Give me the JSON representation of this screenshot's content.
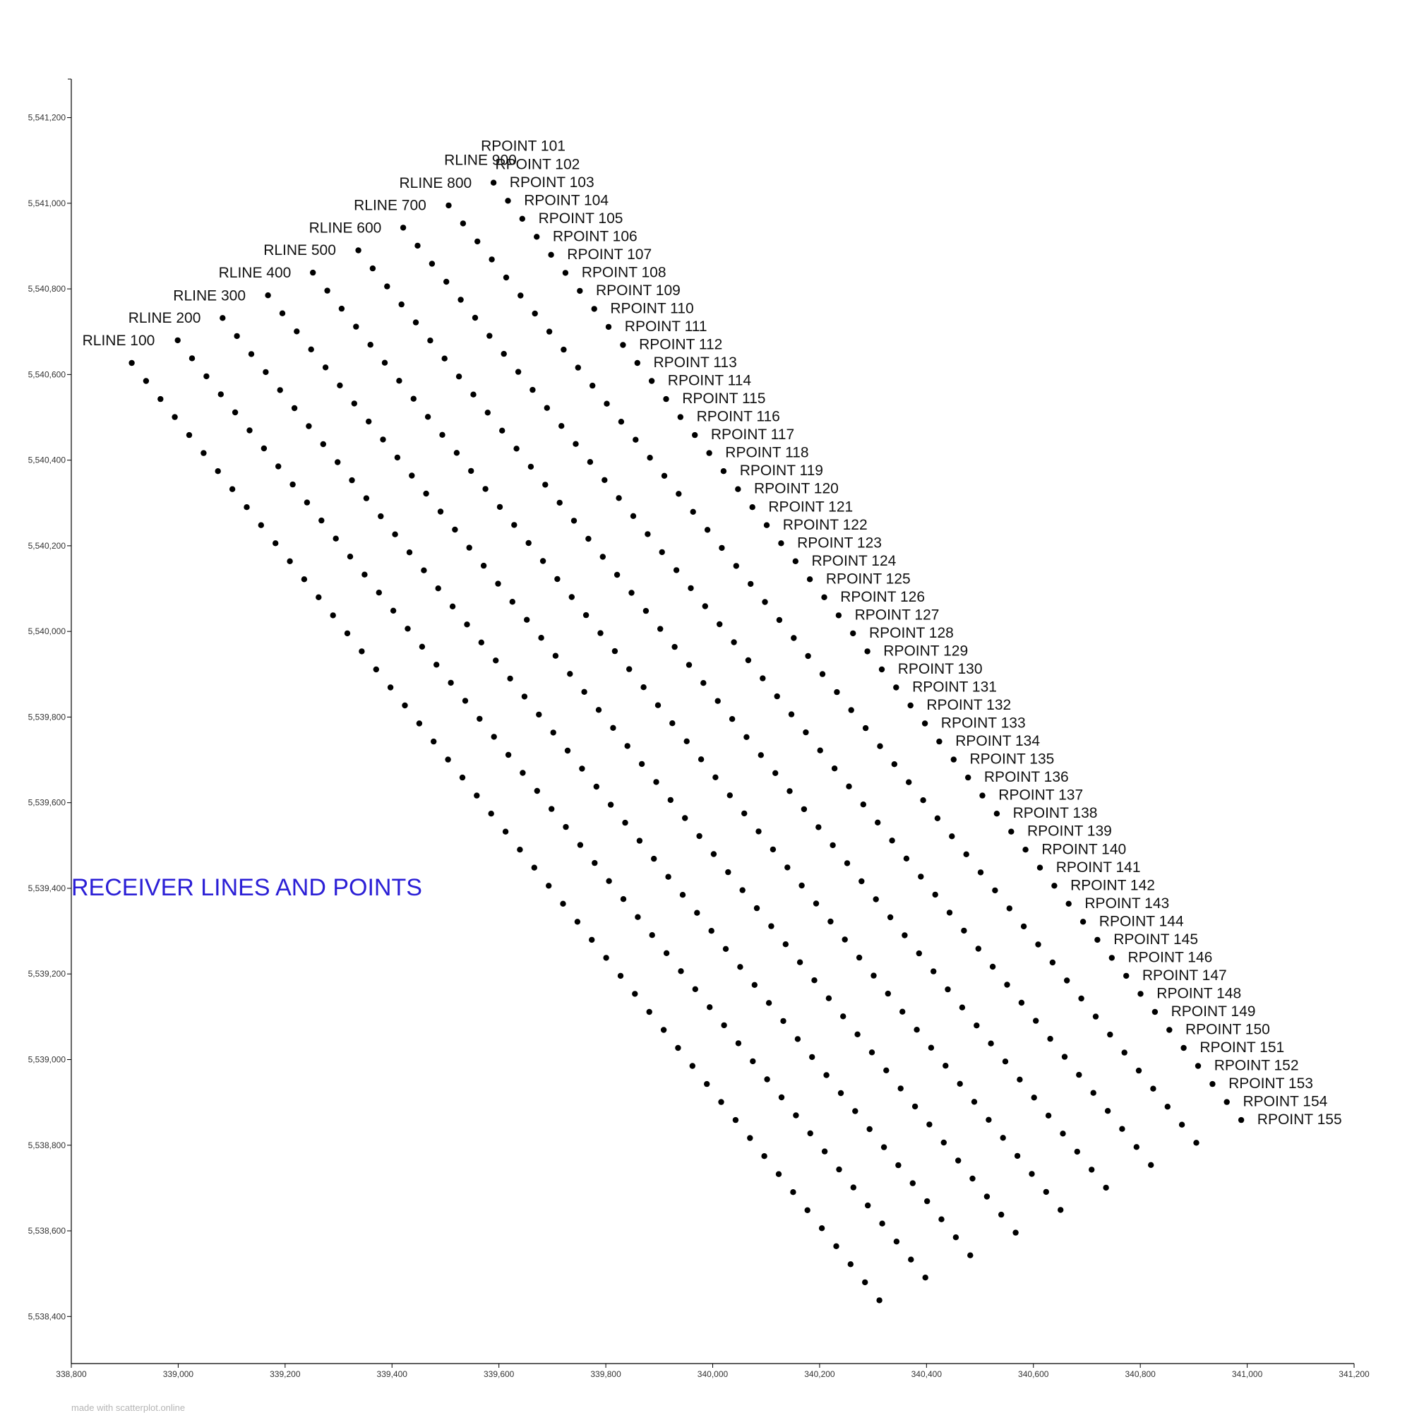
{
  "chart_data": {
    "type": "scatter",
    "title": "RECEIVER LINES AND POINTS",
    "xlabel": "",
    "ylabel": "",
    "xlim": [
      338800,
      341200
    ],
    "ylim": [
      5538290,
      5541290
    ],
    "x_ticks": [
      338800,
      339000,
      339200,
      339400,
      339600,
      339800,
      340000,
      340200,
      340400,
      340600,
      340800,
      341000,
      341200
    ],
    "y_ticks": [
      5538400,
      5538600,
      5538800,
      5539000,
      5539200,
      5539400,
      5539600,
      5539800,
      5540000,
      5540200,
      5540400,
      5540600,
      5540800,
      5541000,
      5541200
    ],
    "x_tick_labels": [
      "338,800",
      "339,000",
      "339,200",
      "339,400",
      "339,600",
      "339,800",
      "340,000",
      "340,200",
      "340,400",
      "340,600",
      "340,800",
      "341,000",
      "341,200"
    ],
    "y_tick_labels": [
      "5,538,400",
      "5,538,600",
      "5,538,800",
      "5,539,000",
      "5,539,200",
      "5,539,400",
      "5,539,600",
      "5,539,800",
      "5,540,000",
      "5,540,200",
      "5,540,400",
      "5,540,600",
      "5,540,800",
      "5,541,000",
      "5,541,200"
    ],
    "grid": false,
    "legend": "none",
    "point_color": "#000000",
    "lines": [
      {
        "name": "RLINE 100",
        "start": [
          338913,
          5540627
        ],
        "step": [
          26.9,
          -42.1
        ],
        "count": 53
      },
      {
        "name": "RLINE 200",
        "start": [
          338999,
          5540680
        ],
        "step": [
          26.9,
          -42.1
        ],
        "count": 53
      },
      {
        "name": "RLINE 300",
        "start": [
          339083,
          5540732
        ],
        "step": [
          26.9,
          -42.1
        ],
        "count": 53
      },
      {
        "name": "RLINE 400",
        "start": [
          339168,
          5540785
        ],
        "step": [
          26.9,
          -42.1
        ],
        "count": 53
      },
      {
        "name": "RLINE 500",
        "start": [
          339252,
          5540838
        ],
        "step": [
          26.9,
          -42.1
        ],
        "count": 53
      },
      {
        "name": "RLINE 600",
        "start": [
          339337,
          5540890
        ],
        "step": [
          26.9,
          -42.1
        ],
        "count": 53
      },
      {
        "name": "RLINE 700",
        "start": [
          339421,
          5540943
        ],
        "step": [
          26.9,
          -42.1
        ],
        "count": 53
      },
      {
        "name": "RLINE 800",
        "start": [
          339506,
          5540995
        ],
        "step": [
          26.9,
          -42.1
        ],
        "count": 53
      },
      {
        "name": "RLINE 900",
        "start": [
          339590,
          5541048
        ],
        "step": [
          26.9,
          -42.1
        ],
        "count": 53
      }
    ],
    "points": {
      "start": [
        339590,
        5541048
      ],
      "step": [
        26.9,
        -42.1
      ],
      "first_number": 101,
      "count": 55,
      "prefix": "RPOINT "
    },
    "credit": "made with scatterplot.online"
  }
}
